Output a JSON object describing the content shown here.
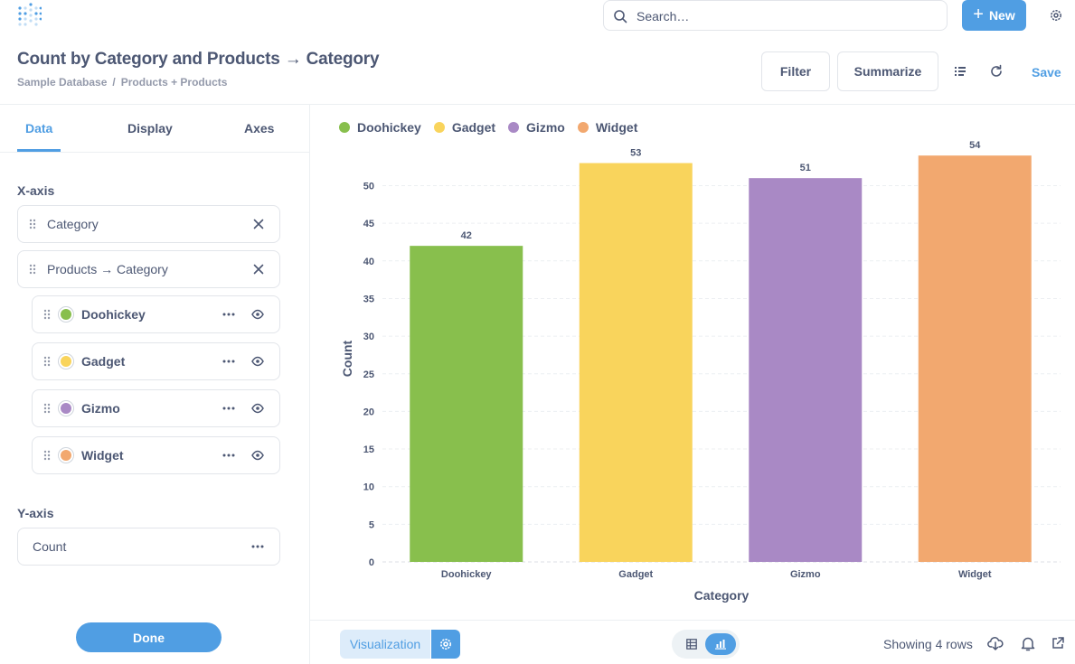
{
  "header": {
    "search_placeholder": "Search…",
    "new_label": "New",
    "question_title": "Count by Category and Products → Category",
    "breadcrumb": [
      "Sample Database",
      "Products + Products"
    ],
    "breadcrumb_sep": "/",
    "filter_label": "Filter",
    "summarize_label": "Summarize",
    "save_label": "Save"
  },
  "sidebar": {
    "tabs": [
      {
        "label": "Data",
        "active": true
      },
      {
        "label": "Display",
        "active": false
      },
      {
        "label": "Axes",
        "active": false
      }
    ],
    "x_axis_label": "X-axis",
    "x_fields": [
      "Category",
      "Products → Category"
    ],
    "series": [
      {
        "label": "Doohickey",
        "color": "#88bf4d"
      },
      {
        "label": "Gadget",
        "color": "#f9d45c"
      },
      {
        "label": "Gizmo",
        "color": "#a989c5"
      },
      {
        "label": "Widget",
        "color": "#f2a86f"
      }
    ],
    "y_axis_label": "Y-axis",
    "y_field": "Count",
    "done_label": "Done"
  },
  "chart_data": {
    "type": "bar",
    "categories": [
      "Doohickey",
      "Gadget",
      "Gizmo",
      "Widget"
    ],
    "values": [
      42,
      53,
      51,
      54
    ],
    "colors": [
      "#88bf4d",
      "#f9d45c",
      "#a989c5",
      "#f2a86f"
    ],
    "legend": [
      "Doohickey",
      "Gadget",
      "Gizmo",
      "Widget"
    ],
    "legend_position": "top-left",
    "title": "",
    "xlabel": "Category",
    "ylabel": "Count",
    "ylim": [
      0,
      55
    ],
    "yticks": [
      "0",
      "5",
      "10",
      "15",
      "20",
      "25",
      "30",
      "35",
      "40",
      "45",
      "50"
    ],
    "grid": true,
    "data_labels": true
  },
  "footer": {
    "viz_label": "Visualization",
    "rows_text": "Showing 4 rows"
  }
}
